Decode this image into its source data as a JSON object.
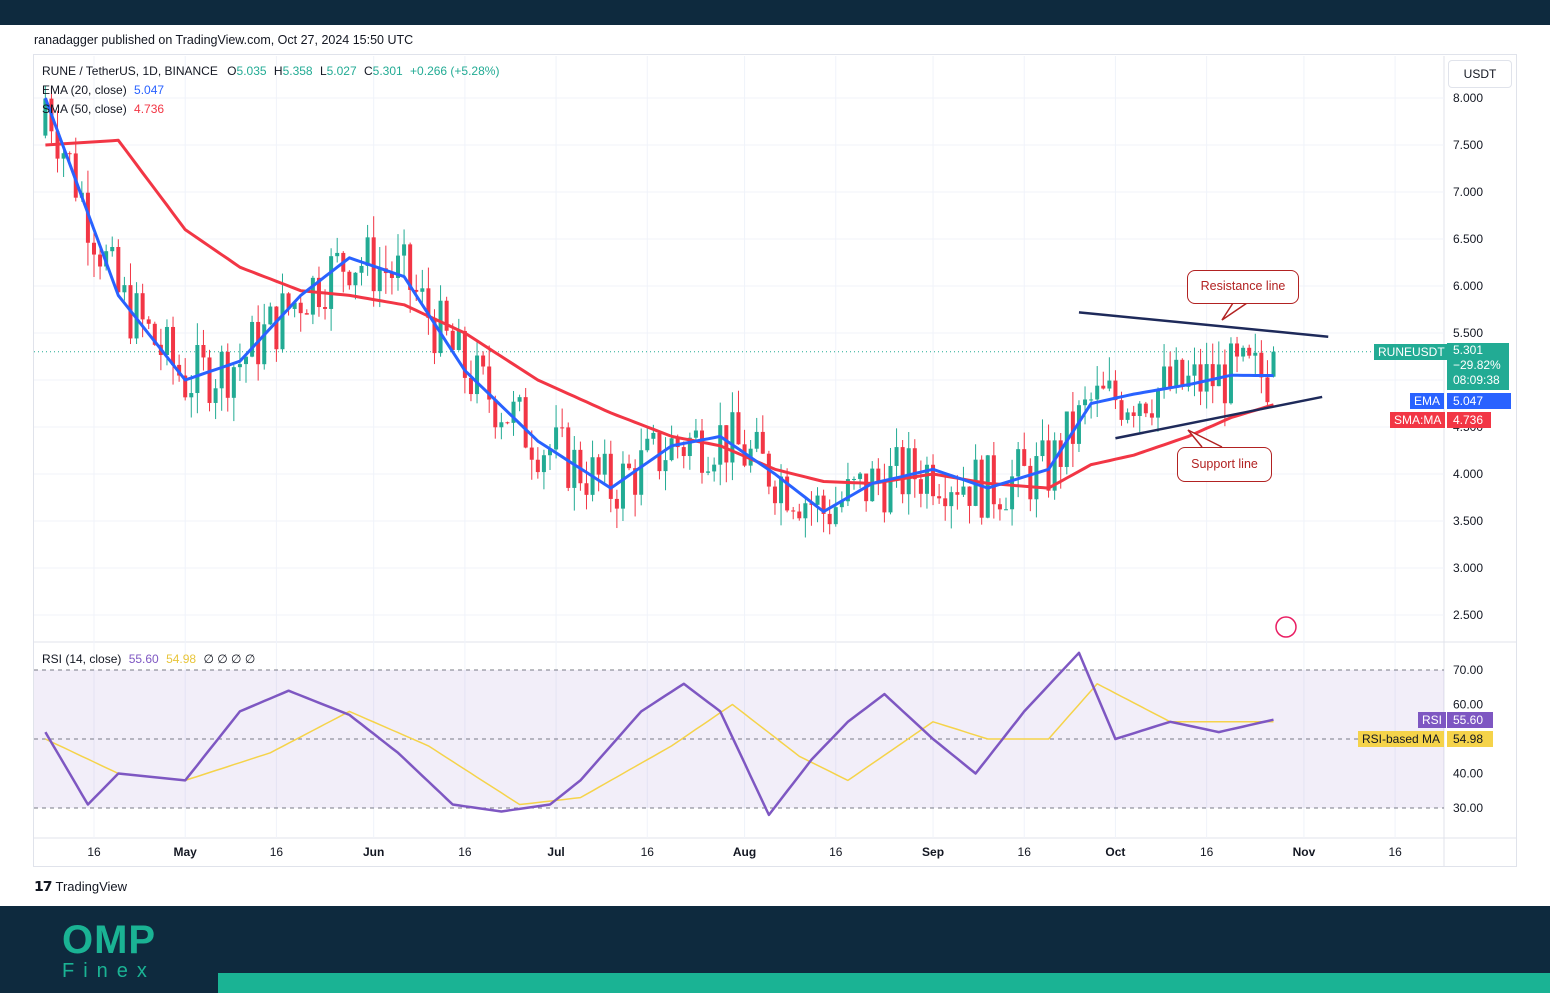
{
  "colors": {
    "frame_dark": "#0e2a3e",
    "brand_teal": "#1ab394",
    "up_candle": "#22ab94",
    "down_candle": "#f23645",
    "ema": "#2962ff",
    "sma": "#f23645",
    "rsi": "#7e57c2",
    "rsi_ma": "#f5d34a",
    "trendline": "#1e2a5a",
    "callout": "#b22222"
  },
  "publisher": "ranadagger published on TradingView.com, Oct 27, 2024 15:50 UTC",
  "legend": {
    "symbol": "RUNE / TetherUS, 1D, BINANCE",
    "o_label": "O",
    "o": "5.035",
    "h_label": "H",
    "h": "5.358",
    "l_label": "L",
    "l": "5.027",
    "c_label": "C",
    "c": "5.301",
    "change": "+0.266 (+5.28%)",
    "ema_label": "EMA (20, close)",
    "ema_value": "5.047",
    "sma_label": "SMA (50, close)",
    "sma_value": "4.736",
    "rsi_label": "RSI (14, close)",
    "rsi_value": "55.60",
    "rsi_ma_value": "54.98",
    "rsi_extra": "∅ ∅ ∅ ∅"
  },
  "price_axis": {
    "unit": "USDT",
    "ticks": [
      "8.000",
      "7.500",
      "7.000",
      "6.500",
      "6.000",
      "5.500",
      "5.000",
      "4.500",
      "4.000",
      "3.500",
      "3.000",
      "2.500"
    ]
  },
  "rsi_axis": {
    "ticks": [
      "70.00",
      "60.00",
      "50.00",
      "40.00",
      "30.00"
    ]
  },
  "time_axis": {
    "ticks": [
      "16",
      "May",
      "16",
      "Jun",
      "16",
      "Jul",
      "16",
      "Aug",
      "16",
      "Sep",
      "16",
      "Oct",
      "16",
      "Nov",
      "16"
    ]
  },
  "tags": {
    "symbol": "RUNEUSDT",
    "price": "5.301",
    "pct": "−29.82%",
    "countdown": "08:09:38",
    "ema_label": "EMA",
    "ema_value": "5.047",
    "sma_label": "SMA:MA",
    "sma_value": "4.736",
    "rsi_label": "RSI",
    "rsi_value": "55.60",
    "rsi_ma_label": "RSI-based MA",
    "rsi_ma_value": "54.98"
  },
  "annotations": {
    "resistance": "Resistance line",
    "support": "Support line"
  },
  "footer": {
    "brand": "TradingView"
  },
  "watermark": {
    "line1": "OMP",
    "line2": "Finex"
  },
  "chart_data": [
    {
      "type": "candlestick",
      "title": "RUNE / TetherUS, 1D, BINANCE",
      "ylabel": "USDT",
      "ylim": [
        2.3,
        8.3
      ],
      "x_start": "2024-04-08",
      "x_end": "2024-10-27",
      "series": [
        {
          "name": "EMA (20, close)",
          "x": [
            "2024-04-08",
            "2024-04-20",
            "2024-05-01",
            "2024-05-10",
            "2024-05-20",
            "2024-05-28",
            "2024-06-06",
            "2024-06-16",
            "2024-06-28",
            "2024-07-10",
            "2024-07-20",
            "2024-07-28",
            "2024-08-06",
            "2024-08-14",
            "2024-08-22",
            "2024-09-01",
            "2024-09-10",
            "2024-09-20",
            "2024-09-27",
            "2024-10-04",
            "2024-10-13",
            "2024-10-20",
            "2024-10-27"
          ],
          "values": [
            8.0,
            5.9,
            5.0,
            5.2,
            5.9,
            6.3,
            6.1,
            5.1,
            4.35,
            3.85,
            4.3,
            4.4,
            4.0,
            3.6,
            3.9,
            4.05,
            3.85,
            4.05,
            4.75,
            4.85,
            4.95,
            5.05,
            5.047
          ]
        },
        {
          "name": "SMA (50, close)",
          "x": [
            "2024-04-08",
            "2024-04-20",
            "2024-05-01",
            "2024-05-10",
            "2024-05-20",
            "2024-05-28",
            "2024-06-06",
            "2024-06-16",
            "2024-06-28",
            "2024-07-10",
            "2024-07-20",
            "2024-07-28",
            "2024-08-06",
            "2024-08-14",
            "2024-08-22",
            "2024-09-01",
            "2024-09-10",
            "2024-09-20",
            "2024-09-27",
            "2024-10-04",
            "2024-10-13",
            "2024-10-20",
            "2024-10-27"
          ],
          "values": [
            7.5,
            7.55,
            6.6,
            6.2,
            5.95,
            5.9,
            5.8,
            5.5,
            5.0,
            4.65,
            4.4,
            4.3,
            4.05,
            3.92,
            3.9,
            4.0,
            3.9,
            3.85,
            4.1,
            4.2,
            4.4,
            4.6,
            4.736
          ]
        }
      ],
      "last": {
        "open": 5.035,
        "high": 5.358,
        "low": 5.027,
        "close": 5.301
      },
      "annotations": [
        {
          "text": "Resistance line",
          "from": [
            "2024-09-25",
            5.72
          ],
          "to": [
            "2024-11-05",
            5.46
          ]
        },
        {
          "text": "Support line",
          "from": [
            "2024-10-01",
            4.38
          ],
          "to": [
            "2024-11-04",
            4.82
          ]
        }
      ]
    },
    {
      "type": "line",
      "title": "RSI (14, close)",
      "ylim": [
        25,
        80
      ],
      "bands": [
        30,
        70
      ],
      "midline": 50,
      "series": [
        {
          "name": "RSI",
          "x": [
            "2024-04-08",
            "2024-04-15",
            "2024-04-20",
            "2024-05-01",
            "2024-05-10",
            "2024-05-18",
            "2024-05-28",
            "2024-06-05",
            "2024-06-14",
            "2024-06-22",
            "2024-06-30",
            "2024-07-05",
            "2024-07-15",
            "2024-07-22",
            "2024-07-28",
            "2024-08-05",
            "2024-08-12",
            "2024-08-18",
            "2024-08-24",
            "2024-09-01",
            "2024-09-08",
            "2024-09-16",
            "2024-09-25",
            "2024-10-01",
            "2024-10-10",
            "2024-10-18",
            "2024-10-27"
          ],
          "values": [
            52,
            31,
            40,
            38,
            58,
            64,
            57,
            46,
            31,
            29,
            31,
            38,
            58,
            66,
            58,
            28,
            44,
            55,
            63,
            50,
            40,
            58,
            75,
            50,
            55,
            52,
            55.6
          ]
        },
        {
          "name": "RSI-based MA",
          "x": [
            "2024-04-08",
            "2024-04-20",
            "2024-05-01",
            "2024-05-15",
            "2024-05-28",
            "2024-06-10",
            "2024-06-25",
            "2024-07-05",
            "2024-07-20",
            "2024-07-30",
            "2024-08-10",
            "2024-08-18",
            "2024-09-01",
            "2024-09-10",
            "2024-09-20",
            "2024-09-28",
            "2024-10-10",
            "2024-10-27"
          ],
          "values": [
            50,
            40,
            38,
            46,
            58,
            48,
            31,
            33,
            48,
            60,
            45,
            38,
            55,
            50,
            50,
            66,
            55,
            54.98
          ]
        }
      ]
    }
  ]
}
